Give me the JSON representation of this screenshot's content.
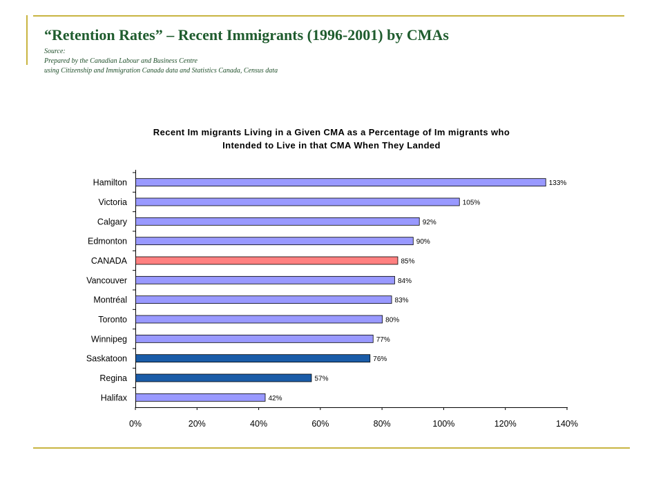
{
  "slide": {
    "title": "“Retention Rates” – Recent Immigrants (1996-2001) by CMAs",
    "source_lines": [
      "Source:",
      "Prepared by the Canadian Labour and Business Centre",
      "using Citizenship and Immigration Canada data and Statistics Canada, Census data"
    ]
  },
  "chart_data": {
    "type": "bar",
    "orientation": "horizontal",
    "title": "Recent Immigrants Living in a Given CMA as a Percentage of Immigrants who Intended to Live in that CMA When They Landed",
    "title_lines": [
      "Recent Im migrants Living in a Given CMA as a Percentage of Im migrants who",
      "Intended to Live in that CMA When They Landed"
    ],
    "categories": [
      "Hamilton",
      "Victoria",
      "Calgary",
      "Edmonton",
      "CANADA",
      "Vancouver",
      "Montréal",
      "Toronto",
      "Winnipeg",
      "Saskatoon",
      "Regina",
      "Halifax"
    ],
    "category_labels": [
      "Hamilton",
      "Victoria",
      "Calgary",
      "Edmonton",
      "CANADA",
      "Vancouver",
      "Montréal",
      "Toronto",
      "Winnipeg",
      "Saskatoon",
      "Regina",
      "Halifax"
    ],
    "values": [
      133,
      105,
      92,
      90,
      85,
      84,
      83,
      80,
      77,
      76,
      57,
      42
    ],
    "value_labels": [
      "133%",
      "105%",
      "92%",
      "90%",
      "85%",
      "84%",
      "83%",
      "80%",
      "77%",
      "76%",
      "57%",
      "42%"
    ],
    "bar_colors": [
      "#9999ff",
      "#9999ff",
      "#9999ff",
      "#9999ff",
      "#ff8080",
      "#9999ff",
      "#9999ff",
      "#9999ff",
      "#9999ff",
      "#1a5ca8",
      "#1a5ca8",
      "#9999ff"
    ],
    "x_ticks": [
      0,
      20,
      40,
      60,
      80,
      100,
      120,
      140
    ],
    "x_tick_labels": [
      "0%",
      "20%",
      "40%",
      "60%",
      "80%",
      "100%",
      "120%",
      "140%"
    ],
    "xlim": [
      0,
      140
    ],
    "xlabel": "",
    "ylabel": "",
    "grid": false,
    "legend": false
  }
}
